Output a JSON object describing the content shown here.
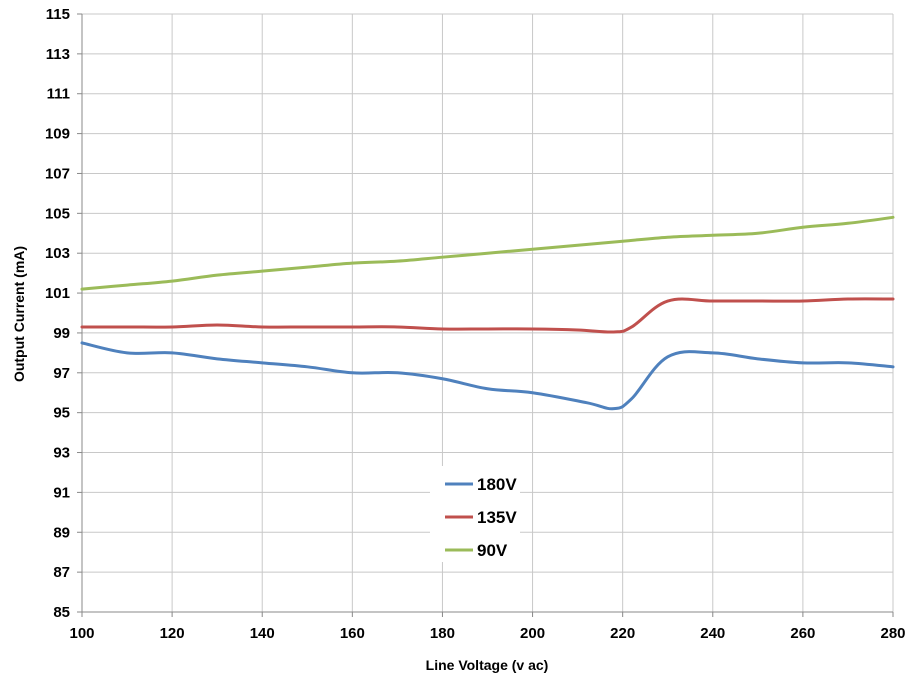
{
  "chart_data": {
    "type": "line",
    "title": "",
    "xlabel": "Line Voltage (v ac)",
    "ylabel": "Output Current (mA)",
    "xlim": [
      100,
      280
    ],
    "ylim": [
      85,
      115
    ],
    "x_ticks": [
      "100",
      "120",
      "140",
      "160",
      "180",
      "200",
      "220",
      "240",
      "260",
      "280"
    ],
    "y_ticks": [
      "85",
      "87",
      "89",
      "91",
      "93",
      "95",
      "97",
      "99",
      "101",
      "103",
      "105",
      "107",
      "109",
      "111",
      "113",
      "115"
    ],
    "grid": true,
    "legend_position": "lower-center",
    "series": [
      {
        "name": "180V",
        "color": "#4F81BD",
        "x": [
          100,
          110,
          120,
          130,
          140,
          150,
          160,
          170,
          180,
          190,
          200,
          212,
          218,
          222,
          230,
          240,
          250,
          260,
          270,
          280
        ],
        "values": [
          98.5,
          98.0,
          98.0,
          97.7,
          97.5,
          97.3,
          97.0,
          97.0,
          96.7,
          96.2,
          96.0,
          95.5,
          95.2,
          95.7,
          97.8,
          98.0,
          97.7,
          97.5,
          97.5,
          97.3
        ]
      },
      {
        "name": "135V",
        "color": "#C0504D",
        "x": [
          100,
          110,
          120,
          130,
          140,
          150,
          160,
          170,
          180,
          190,
          200,
          210,
          218,
          222,
          230,
          240,
          250,
          260,
          270,
          280
        ],
        "values": [
          99.3,
          99.3,
          99.3,
          99.4,
          99.3,
          99.3,
          99.3,
          99.3,
          99.2,
          99.2,
          99.2,
          99.15,
          99.05,
          99.3,
          100.6,
          100.6,
          100.6,
          100.6,
          100.7,
          100.7
        ]
      },
      {
        "name": "90V",
        "color": "#9BBB59",
        "x": [
          100,
          110,
          120,
          130,
          140,
          150,
          160,
          170,
          180,
          190,
          200,
          210,
          220,
          230,
          240,
          250,
          260,
          270,
          280
        ],
        "values": [
          101.2,
          101.4,
          101.6,
          101.9,
          102.1,
          102.3,
          102.5,
          102.6,
          102.8,
          103.0,
          103.2,
          103.4,
          103.6,
          103.8,
          103.9,
          104.0,
          104.3,
          104.5,
          104.8
        ]
      }
    ]
  }
}
